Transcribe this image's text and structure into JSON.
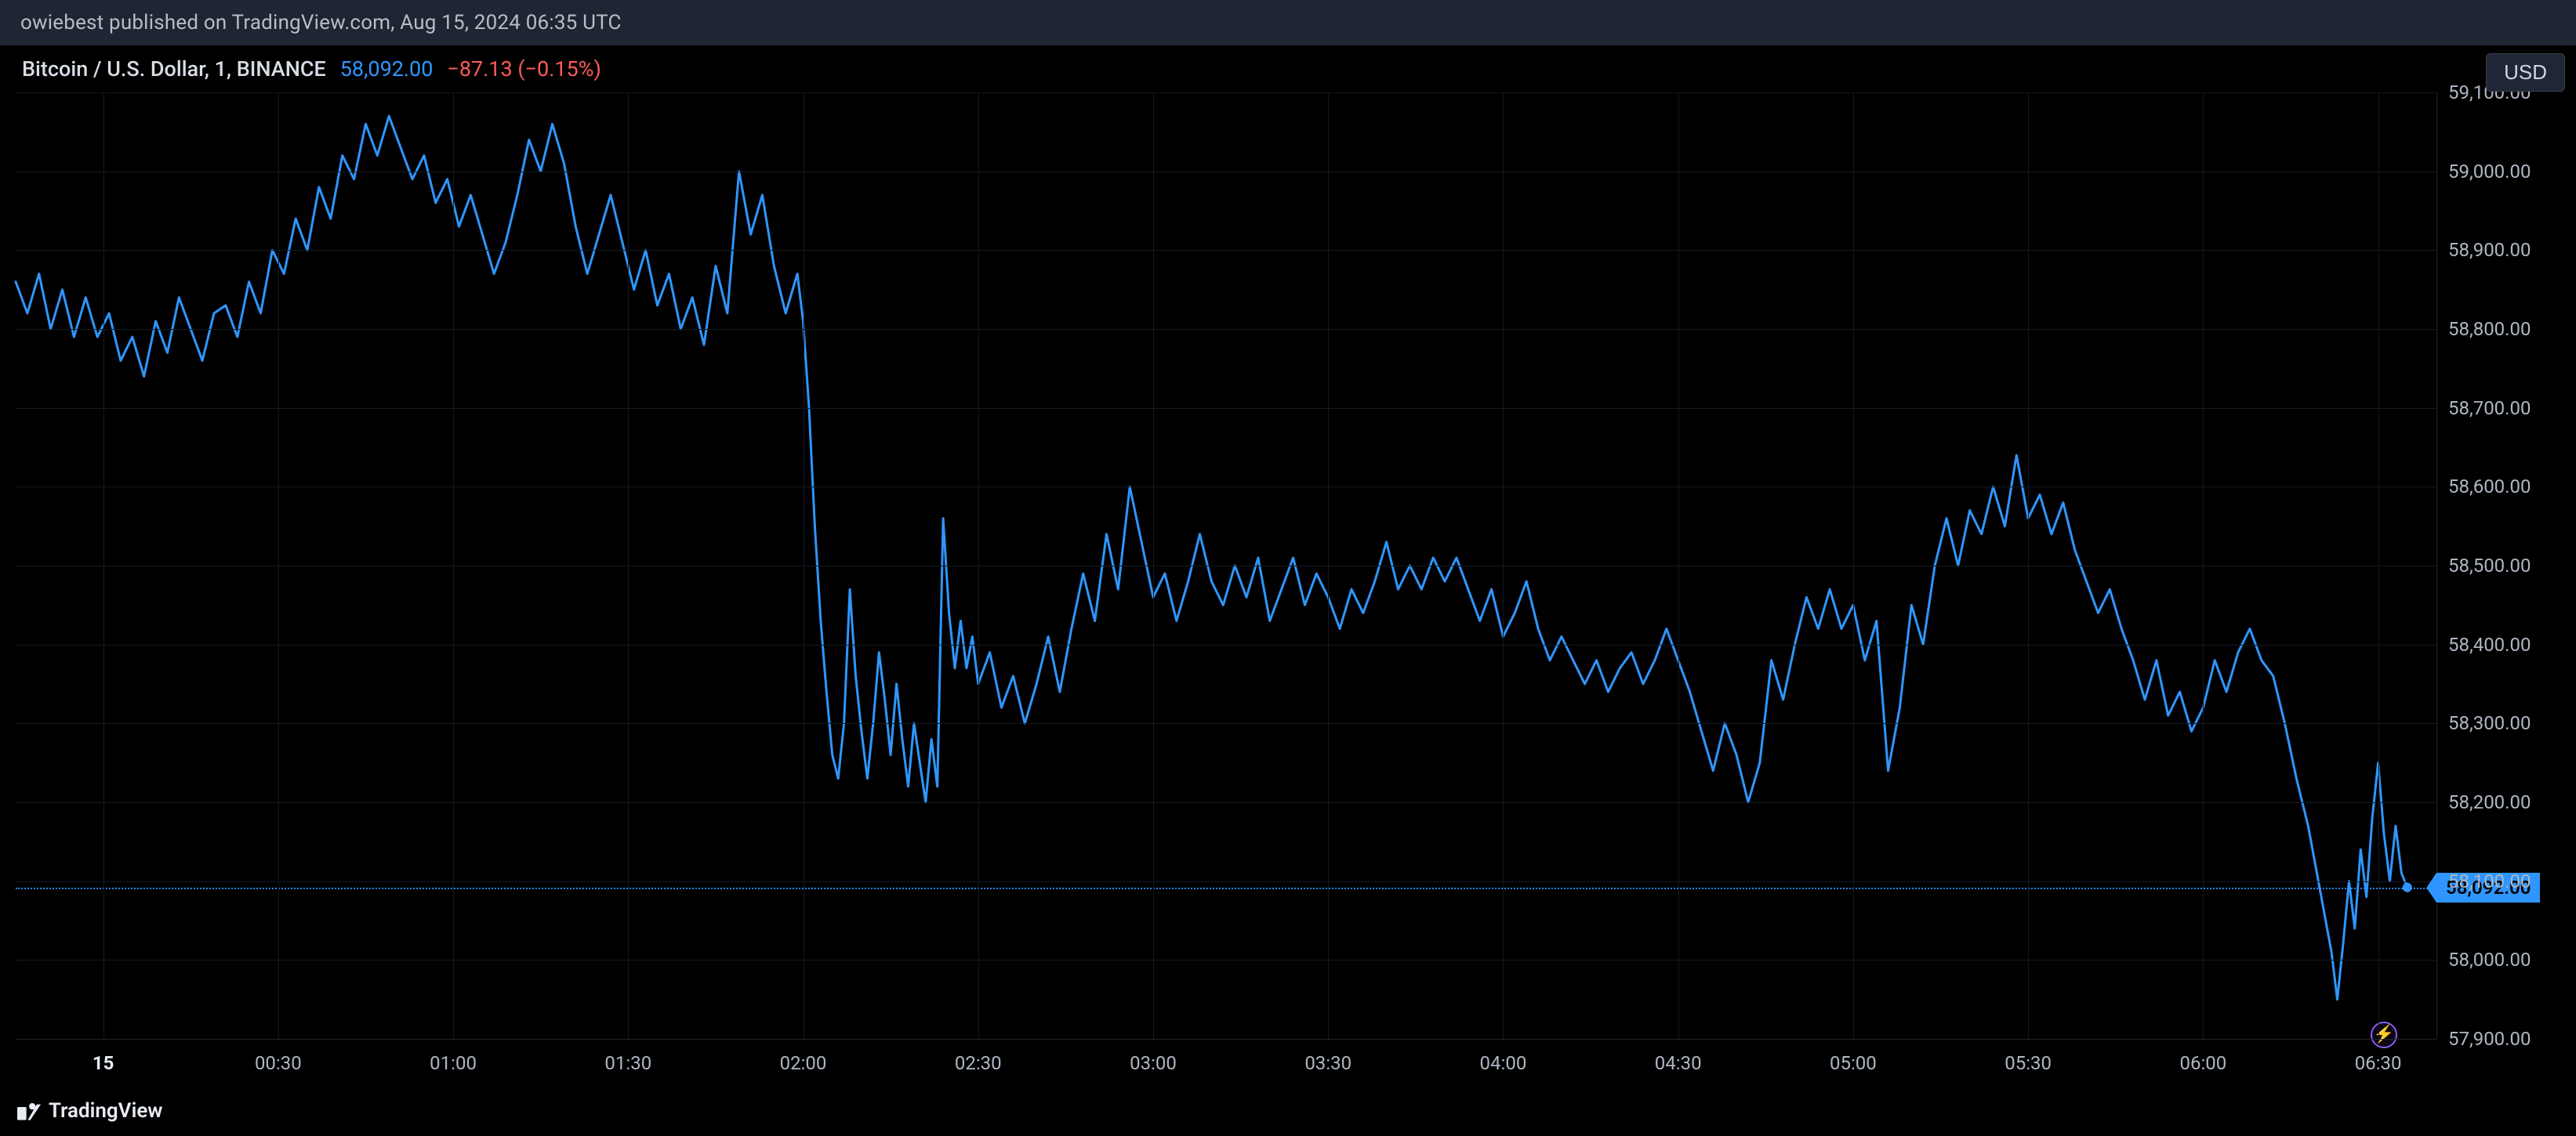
{
  "header": {
    "publish_text": "owiebest published on TradingView.com, Aug 15, 2024 06:35 UTC"
  },
  "info": {
    "symbol_desc": "Bitcoin / U.S. Dollar, 1, BINANCE",
    "last_price": "58,092.00",
    "change_abs": "−87.13",
    "change_pct": "(−0.15%)"
  },
  "currency_button": {
    "label": "USD"
  },
  "footer": {
    "brand": "TradingView"
  },
  "chart": {
    "type": "line",
    "line_color": "#2f96ff",
    "line_width": 3,
    "background_color": "#000000",
    "grid_color": "#141923",
    "axis_label_color": "#aeb6c2",
    "ylim": [
      57900,
      59100
    ],
    "ytick_step": 100,
    "yticks": [
      "59,100.00",
      "59,000.00",
      "58,900.00",
      "58,800.00",
      "58,700.00",
      "58,600.00",
      "58,500.00",
      "58,400.00",
      "58,300.00",
      "58,200.00",
      "58,100.00",
      "58,000.00",
      "57,900.00"
    ],
    "ytick_values": [
      59100,
      59000,
      58900,
      58800,
      58700,
      58600,
      58500,
      58400,
      58300,
      58200,
      58100,
      58000,
      57900
    ],
    "xlim_minutes": [
      -15,
      400
    ],
    "xticks": [
      {
        "min": 0,
        "label": "15",
        "bold": true
      },
      {
        "min": 30,
        "label": "00:30"
      },
      {
        "min": 60,
        "label": "01:00"
      },
      {
        "min": 90,
        "label": "01:30"
      },
      {
        "min": 120,
        "label": "02:00"
      },
      {
        "min": 150,
        "label": "02:30"
      },
      {
        "min": 180,
        "label": "03:00"
      },
      {
        "min": 210,
        "label": "03:30"
      },
      {
        "min": 240,
        "label": "04:00"
      },
      {
        "min": 270,
        "label": "04:30"
      },
      {
        "min": 300,
        "label": "05:00"
      },
      {
        "min": 330,
        "label": "05:30"
      },
      {
        "min": 360,
        "label": "06:00"
      },
      {
        "min": 390,
        "label": "06:30"
      }
    ],
    "current_price": 58092,
    "current_price_label": "58,092.00",
    "dot_color": "#2f96ff",
    "series": [
      [
        -15,
        58860
      ],
      [
        -13,
        58820
      ],
      [
        -11,
        58870
      ],
      [
        -9,
        58800
      ],
      [
        -7,
        58850
      ],
      [
        -5,
        58790
      ],
      [
        -3,
        58840
      ],
      [
        -1,
        58790
      ],
      [
        1,
        58820
      ],
      [
        3,
        58760
      ],
      [
        5,
        58790
      ],
      [
        7,
        58740
      ],
      [
        9,
        58810
      ],
      [
        11,
        58770
      ],
      [
        13,
        58840
      ],
      [
        15,
        58800
      ],
      [
        17,
        58760
      ],
      [
        19,
        58820
      ],
      [
        21,
        58830
      ],
      [
        23,
        58790
      ],
      [
        25,
        58860
      ],
      [
        27,
        58820
      ],
      [
        29,
        58900
      ],
      [
        31,
        58870
      ],
      [
        33,
        58940
      ],
      [
        35,
        58900
      ],
      [
        37,
        58980
      ],
      [
        39,
        58940
      ],
      [
        41,
        59020
      ],
      [
        43,
        58990
      ],
      [
        45,
        59060
      ],
      [
        47,
        59020
      ],
      [
        49,
        59070
      ],
      [
        51,
        59030
      ],
      [
        53,
        58990
      ],
      [
        55,
        59020
      ],
      [
        57,
        58960
      ],
      [
        59,
        58990
      ],
      [
        61,
        58930
      ],
      [
        63,
        58970
      ],
      [
        65,
        58920
      ],
      [
        67,
        58870
      ],
      [
        69,
        58910
      ],
      [
        71,
        58970
      ],
      [
        73,
        59040
      ],
      [
        75,
        59000
      ],
      [
        77,
        59060
      ],
      [
        79,
        59010
      ],
      [
        81,
        58930
      ],
      [
        83,
        58870
      ],
      [
        85,
        58920
      ],
      [
        87,
        58970
      ],
      [
        89,
        58910
      ],
      [
        91,
        58850
      ],
      [
        93,
        58900
      ],
      [
        95,
        58830
      ],
      [
        97,
        58870
      ],
      [
        99,
        58800
      ],
      [
        101,
        58840
      ],
      [
        103,
        58780
      ],
      [
        105,
        58880
      ],
      [
        107,
        58820
      ],
      [
        109,
        59000
      ],
      [
        111,
        58920
      ],
      [
        113,
        58970
      ],
      [
        115,
        58880
      ],
      [
        117,
        58820
      ],
      [
        119,
        58870
      ],
      [
        120,
        58810
      ],
      [
        121,
        58700
      ],
      [
        122,
        58550
      ],
      [
        123,
        58430
      ],
      [
        124,
        58340
      ],
      [
        125,
        58260
      ],
      [
        126,
        58230
      ],
      [
        127,
        58300
      ],
      [
        128,
        58470
      ],
      [
        129,
        58360
      ],
      [
        130,
        58290
      ],
      [
        131,
        58230
      ],
      [
        132,
        58300
      ],
      [
        133,
        58390
      ],
      [
        134,
        58330
      ],
      [
        135,
        58260
      ],
      [
        136,
        58350
      ],
      [
        137,
        58280
      ],
      [
        138,
        58220
      ],
      [
        139,
        58300
      ],
      [
        140,
        58250
      ],
      [
        141,
        58200
      ],
      [
        142,
        58280
      ],
      [
        143,
        58220
      ],
      [
        144,
        58560
      ],
      [
        145,
        58440
      ],
      [
        146,
        58370
      ],
      [
        147,
        58430
      ],
      [
        148,
        58370
      ],
      [
        149,
        58410
      ],
      [
        150,
        58350
      ],
      [
        152,
        58390
      ],
      [
        154,
        58320
      ],
      [
        156,
        58360
      ],
      [
        158,
        58300
      ],
      [
        160,
        58350
      ],
      [
        162,
        58410
      ],
      [
        164,
        58340
      ],
      [
        166,
        58420
      ],
      [
        168,
        58490
      ],
      [
        170,
        58430
      ],
      [
        172,
        58540
      ],
      [
        174,
        58470
      ],
      [
        176,
        58600
      ],
      [
        178,
        58530
      ],
      [
        180,
        58460
      ],
      [
        182,
        58490
      ],
      [
        184,
        58430
      ],
      [
        186,
        58480
      ],
      [
        188,
        58540
      ],
      [
        190,
        58480
      ],
      [
        192,
        58450
      ],
      [
        194,
        58500
      ],
      [
        196,
        58460
      ],
      [
        198,
        58510
      ],
      [
        200,
        58430
      ],
      [
        202,
        58470
      ],
      [
        204,
        58510
      ],
      [
        206,
        58450
      ],
      [
        208,
        58490
      ],
      [
        210,
        58460
      ],
      [
        212,
        58420
      ],
      [
        214,
        58470
      ],
      [
        216,
        58440
      ],
      [
        218,
        58480
      ],
      [
        220,
        58530
      ],
      [
        222,
        58470
      ],
      [
        224,
        58500
      ],
      [
        226,
        58470
      ],
      [
        228,
        58510
      ],
      [
        230,
        58480
      ],
      [
        232,
        58510
      ],
      [
        234,
        58470
      ],
      [
        236,
        58430
      ],
      [
        238,
        58470
      ],
      [
        240,
        58410
      ],
      [
        242,
        58440
      ],
      [
        244,
        58480
      ],
      [
        246,
        58420
      ],
      [
        248,
        58380
      ],
      [
        250,
        58410
      ],
      [
        252,
        58380
      ],
      [
        254,
        58350
      ],
      [
        256,
        58380
      ],
      [
        258,
        58340
      ],
      [
        260,
        58370
      ],
      [
        262,
        58390
      ],
      [
        264,
        58350
      ],
      [
        266,
        58380
      ],
      [
        268,
        58420
      ],
      [
        270,
        58380
      ],
      [
        272,
        58340
      ],
      [
        274,
        58290
      ],
      [
        276,
        58240
      ],
      [
        278,
        58300
      ],
      [
        280,
        58260
      ],
      [
        282,
        58200
      ],
      [
        284,
        58250
      ],
      [
        286,
        58380
      ],
      [
        288,
        58330
      ],
      [
        290,
        58400
      ],
      [
        292,
        58460
      ],
      [
        294,
        58420
      ],
      [
        296,
        58470
      ],
      [
        298,
        58420
      ],
      [
        300,
        58450
      ],
      [
        302,
        58380
      ],
      [
        304,
        58430
      ],
      [
        306,
        58240
      ],
      [
        308,
        58320
      ],
      [
        310,
        58450
      ],
      [
        312,
        58400
      ],
      [
        314,
        58500
      ],
      [
        316,
        58560
      ],
      [
        318,
        58500
      ],
      [
        320,
        58570
      ],
      [
        322,
        58540
      ],
      [
        324,
        58600
      ],
      [
        326,
        58550
      ],
      [
        328,
        58640
      ],
      [
        330,
        58560
      ],
      [
        332,
        58590
      ],
      [
        334,
        58540
      ],
      [
        336,
        58580
      ],
      [
        338,
        58520
      ],
      [
        340,
        58480
      ],
      [
        342,
        58440
      ],
      [
        344,
        58470
      ],
      [
        346,
        58420
      ],
      [
        348,
        58380
      ],
      [
        350,
        58330
      ],
      [
        352,
        58380
      ],
      [
        354,
        58310
      ],
      [
        356,
        58340
      ],
      [
        358,
        58290
      ],
      [
        360,
        58320
      ],
      [
        362,
        58380
      ],
      [
        364,
        58340
      ],
      [
        366,
        58390
      ],
      [
        368,
        58420
      ],
      [
        370,
        58380
      ],
      [
        372,
        58360
      ],
      [
        374,
        58300
      ],
      [
        376,
        58230
      ],
      [
        378,
        58170
      ],
      [
        380,
        58090
      ],
      [
        382,
        58010
      ],
      [
        383,
        57950
      ],
      [
        384,
        58020
      ],
      [
        385,
        58100
      ],
      [
        386,
        58040
      ],
      [
        387,
        58140
      ],
      [
        388,
        58080
      ],
      [
        389,
        58180
      ],
      [
        390,
        58250
      ],
      [
        391,
        58160
      ],
      [
        392,
        58100
      ],
      [
        393,
        58170
      ],
      [
        394,
        58110
      ],
      [
        395,
        58092
      ]
    ],
    "flash_badge": {
      "x_min": 391,
      "y_price": 57905
    }
  }
}
